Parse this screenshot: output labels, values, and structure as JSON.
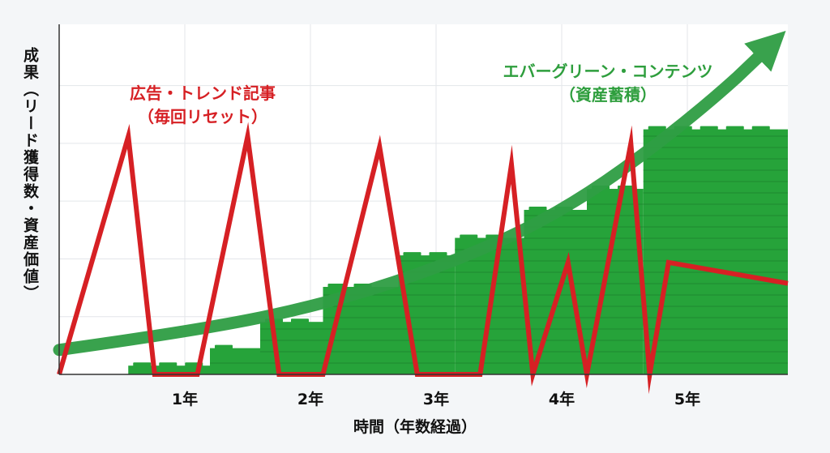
{
  "chart_data": {
    "type": "line",
    "title": "",
    "xlabel": "時間（年数経過）",
    "ylabel": "成果（リード獲得数・資産価値）",
    "x_ticks": [
      "1年",
      "2年",
      "3年",
      "4年",
      "5年"
    ],
    "x_range": [
      0,
      5.8
    ],
    "y_range": [
      0,
      100
    ],
    "grid": true,
    "series": [
      {
        "name": "広告・トレンド記事（毎回リセット）",
        "type": "line",
        "color": "#d62024",
        "points": [
          [
            0,
            0
          ],
          [
            0.55,
            68
          ],
          [
            0.76,
            0
          ],
          [
            1.1,
            0
          ],
          [
            1.5,
            68
          ],
          [
            1.75,
            0
          ],
          [
            2.1,
            0
          ],
          [
            2.55,
            65
          ],
          [
            2.85,
            0
          ],
          [
            3.35,
            0
          ],
          [
            3.6,
            60
          ],
          [
            3.77,
            0
          ],
          [
            4.05,
            32
          ],
          [
            4.2,
            0
          ],
          [
            4.55,
            66
          ],
          [
            4.7,
            0
          ],
          [
            4.85,
            32
          ],
          [
            5.8,
            26
          ]
        ]
      },
      {
        "name": "エバーグリーン・コンテンツ（資産蓄積）",
        "type": "area-steps",
        "color": "#26a33a",
        "steps": [
          [
            0.55,
            1.2,
            2.5
          ],
          [
            1.2,
            1.6,
            7.5
          ],
          [
            1.6,
            2.1,
            15
          ],
          [
            2.1,
            2.7,
            25
          ],
          [
            2.7,
            3.15,
            34
          ],
          [
            3.15,
            3.7,
            39
          ],
          [
            3.7,
            4.2,
            47
          ],
          [
            4.2,
            4.65,
            53
          ],
          [
            4.65,
            5.8,
            70
          ]
        ]
      },
      {
        "name": "トレンド矢印",
        "type": "curve",
        "color": "#2f9e44",
        "points": [
          [
            0,
            7
          ],
          [
            1,
            12
          ],
          [
            2,
            19
          ],
          [
            3,
            30
          ],
          [
            4,
            46
          ],
          [
            5,
            72
          ],
          [
            5.8,
            98
          ]
        ]
      }
    ],
    "annotations": [
      {
        "lines": [
          "広告・トレンド記事",
          "（毎回リセット）"
        ],
        "color": "#d62024"
      },
      {
        "lines": [
          "エバーグリーン・コンテンツ",
          "（資産蓄積）"
        ],
        "color": "#2e9e3d"
      }
    ]
  }
}
